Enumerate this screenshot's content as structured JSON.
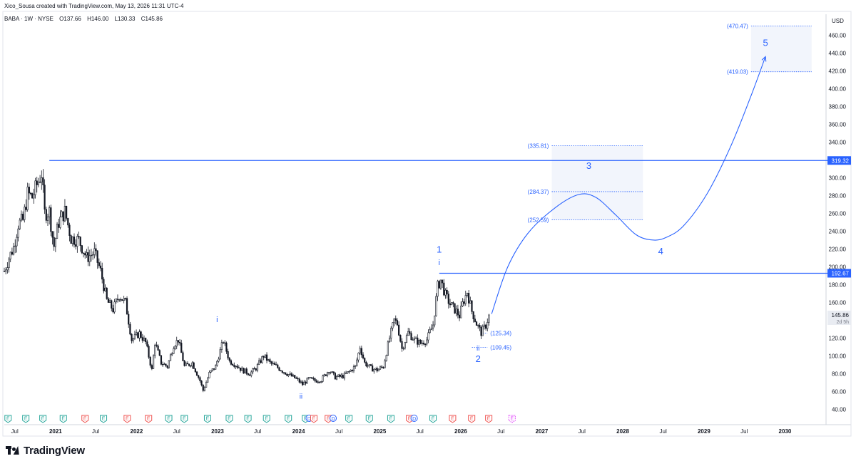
{
  "header": {
    "credit": "Xico_Sousa created with TradingView.com, May 13, 2026 11:31 UTC-4",
    "symbol": "BABA · 1W · NYSE",
    "open": "O137.66",
    "high": "H146.00",
    "low": "L130.33",
    "close": "C145.86"
  },
  "brand": {
    "name": "TradingView"
  },
  "chart_data": {
    "type": "candlestick",
    "symbol": "BABA",
    "interval": "1W",
    "exchange": "NYSE",
    "currency_label": "USD",
    "y_range": [
      25,
      490
    ],
    "y_ticks": [
      40,
      60,
      80,
      100,
      120,
      140,
      160,
      180,
      200,
      220,
      240,
      260,
      280,
      300,
      320,
      340,
      360,
      380,
      400,
      420,
      440,
      460
    ],
    "x_range": [
      "2020-05-15",
      "2030-07-05"
    ],
    "x_ticks": [
      {
        "label": "Jul",
        "date": "2020-07-01",
        "bold": false
      },
      {
        "label": "2021",
        "date": "2021-01-01",
        "bold": true
      },
      {
        "label": "Jul",
        "date": "2021-07-01",
        "bold": false
      },
      {
        "label": "2022",
        "date": "2022-01-01",
        "bold": true
      },
      {
        "label": "Jul",
        "date": "2022-07-01",
        "bold": false
      },
      {
        "label": "2023",
        "date": "2023-01-01",
        "bold": true
      },
      {
        "label": "Jul",
        "date": "2023-07-01",
        "bold": false
      },
      {
        "label": "2024",
        "date": "2024-01-01",
        "bold": true
      },
      {
        "label": "Jul",
        "date": "2024-07-01",
        "bold": false
      },
      {
        "label": "2025",
        "date": "2025-01-01",
        "bold": true
      },
      {
        "label": "Jul",
        "date": "2025-07-01",
        "bold": false
      },
      {
        "label": "2026",
        "date": "2026-01-01",
        "bold": true
      },
      {
        "label": "Jul",
        "date": "2026-07-01",
        "bold": false
      },
      {
        "label": "2027",
        "date": "2027-01-01",
        "bold": true
      },
      {
        "label": "Jul",
        "date": "2027-07-01",
        "bold": false
      },
      {
        "label": "2028",
        "date": "2028-01-01",
        "bold": true
      },
      {
        "label": "Jul",
        "date": "2028-07-01",
        "bold": false
      },
      {
        "label": "2029",
        "date": "2029-01-01",
        "bold": true
      },
      {
        "label": "Jul",
        "date": "2029-07-01",
        "bold": false
      },
      {
        "label": "2030",
        "date": "2030-01-01",
        "bold": true
      }
    ],
    "price_path": [
      [
        "2020-05-15",
        195
      ],
      [
        "2020-06-05",
        210
      ],
      [
        "2020-06-26",
        222
      ],
      [
        "2020-07-17",
        248
      ],
      [
        "2020-08-07",
        252
      ],
      [
        "2020-08-28",
        282
      ],
      [
        "2020-09-18",
        278
      ],
      [
        "2020-10-09",
        292
      ],
      [
        "2020-10-30",
        305
      ],
      [
        "2020-11-13",
        260
      ],
      [
        "2020-12-04",
        262
      ],
      [
        "2020-12-24",
        222
      ],
      [
        "2021-01-15",
        250
      ],
      [
        "2021-02-12",
        262
      ],
      [
        "2021-03-12",
        232
      ],
      [
        "2021-04-16",
        230
      ],
      [
        "2021-05-21",
        210
      ],
      [
        "2021-06-25",
        216
      ],
      [
        "2021-07-23",
        195
      ],
      [
        "2021-08-20",
        162
      ],
      [
        "2021-09-17",
        152
      ],
      [
        "2021-10-15",
        168
      ],
      [
        "2021-11-12",
        160
      ],
      [
        "2021-12-10",
        118
      ],
      [
        "2022-01-14",
        125
      ],
      [
        "2022-02-11",
        115
      ],
      [
        "2022-03-11",
        84
      ],
      [
        "2022-03-25",
        115
      ],
      [
        "2022-04-22",
        92
      ],
      [
        "2022-05-20",
        88
      ],
      [
        "2022-06-17",
        112
      ],
      [
        "2022-07-08",
        118
      ],
      [
        "2022-08-05",
        88
      ],
      [
        "2022-09-09",
        92
      ],
      [
        "2022-10-14",
        72
      ],
      [
        "2022-10-28",
        61
      ],
      [
        "2022-11-25",
        80
      ],
      [
        "2022-12-23",
        88
      ],
      [
        "2023-01-27",
        117
      ],
      [
        "2023-02-24",
        94
      ],
      [
        "2023-03-24",
        90
      ],
      [
        "2023-04-21",
        84
      ],
      [
        "2023-05-26",
        80
      ],
      [
        "2023-06-23",
        86
      ],
      [
        "2023-07-28",
        100
      ],
      [
        "2023-08-25",
        92
      ],
      [
        "2023-09-22",
        88
      ],
      [
        "2023-10-27",
        82
      ],
      [
        "2023-11-24",
        78
      ],
      [
        "2023-12-22",
        74
      ],
      [
        "2024-01-19",
        68
      ],
      [
        "2024-02-16",
        74
      ],
      [
        "2024-03-15",
        72
      ],
      [
        "2024-04-12",
        73
      ],
      [
        "2024-05-17",
        84
      ],
      [
        "2024-06-14",
        76
      ],
      [
        "2024-07-19",
        77
      ],
      [
        "2024-08-16",
        82
      ],
      [
        "2024-09-13",
        88
      ],
      [
        "2024-10-04",
        110
      ],
      [
        "2024-10-25",
        92
      ],
      [
        "2024-11-22",
        86
      ],
      [
        "2024-12-20",
        84
      ],
      [
        "2025-01-17",
        88
      ],
      [
        "2025-02-14",
        120
      ],
      [
        "2025-03-07",
        140
      ],
      [
        "2025-03-21",
        136
      ],
      [
        "2025-04-11",
        108
      ],
      [
        "2025-05-09",
        126
      ],
      [
        "2025-06-06",
        118
      ],
      [
        "2025-07-04",
        114
      ],
      [
        "2025-08-01",
        118
      ],
      [
        "2025-08-29",
        135
      ],
      [
        "2025-09-19",
        178
      ],
      [
        "2025-10-03",
        185
      ],
      [
        "2025-10-24",
        168
      ],
      [
        "2025-11-14",
        158
      ],
      [
        "2025-12-05",
        152
      ],
      [
        "2025-12-26",
        145
      ],
      [
        "2026-01-09",
        158
      ],
      [
        "2026-01-30",
        172
      ],
      [
        "2026-02-20",
        150
      ],
      [
        "2026-03-13",
        136
      ],
      [
        "2026-04-03",
        126
      ],
      [
        "2026-04-24",
        134
      ],
      [
        "2026-05-08",
        145.86
      ]
    ],
    "last_price": 145.86,
    "last_price_sub": "2d 5h",
    "horizontal_levels": [
      {
        "price": 319.32,
        "label": "319.32",
        "from": "2020-12-04"
      },
      {
        "price": 192.67,
        "label": "192.67",
        "from": "2025-09-26"
      }
    ],
    "target_boxes": [
      {
        "from": "2027-02-15",
        "to": "2028-04-01",
        "top": 335.81,
        "bottom": 252.59,
        "levels": [
          {
            "price": 335.81,
            "label": "(335.81)"
          },
          {
            "price": 284.37,
            "label": "(284.37)"
          },
          {
            "price": 252.59,
            "label": "(252.59)"
          }
        ]
      },
      {
        "from": "2029-08-01",
        "to": "2030-05-01",
        "top": 470.47,
        "bottom": 419.03,
        "levels": [
          {
            "price": 470.47,
            "label": "(470.47)"
          },
          {
            "price": 419.03,
            "label": "(419.03)"
          }
        ]
      }
    ],
    "support_levels": [
      {
        "price": 125.34,
        "label": "(125.34)",
        "from": "2026-04-01",
        "to": "2026-10-15"
      },
      {
        "price": 109.45,
        "label": "(109.45)",
        "from": "2026-02-20",
        "to": "2026-10-15"
      }
    ],
    "projection_path": [
      [
        "2026-05-20",
        147
      ],
      [
        "2026-08-01",
        200
      ],
      [
        "2026-11-01",
        238
      ],
      [
        "2027-03-01",
        266
      ],
      [
        "2027-06-15",
        281
      ],
      [
        "2027-09-01",
        278
      ],
      [
        "2027-12-01",
        258
      ],
      [
        "2028-03-01",
        236
      ],
      [
        "2028-05-15",
        230
      ],
      [
        "2028-07-15",
        233
      ],
      [
        "2028-10-01",
        246
      ],
      [
        "2029-01-15",
        282
      ],
      [
        "2029-05-01",
        335
      ],
      [
        "2029-08-01",
        392
      ],
      [
        "2029-10-05",
        436
      ]
    ],
    "wave_labels": [
      {
        "text": "i",
        "date": "2022-12-30",
        "price": 138,
        "color": "#2962ff",
        "size": 11
      },
      {
        "text": "ii",
        "date": "2024-01-12",
        "price": 52,
        "color": "#2962ff",
        "size": 10
      },
      {
        "text": "1",
        "date": "2025-09-26",
        "price": 216,
        "color": "#2962ff",
        "size": 13
      },
      {
        "text": "i",
        "date": "2025-09-26",
        "price": 202,
        "color": "#2962ff",
        "size": 11
      },
      {
        "text": "ii",
        "date": "2026-03-20",
        "price": 106,
        "color": "#2962ff",
        "size": 10
      },
      {
        "text": "2",
        "date": "2026-03-20",
        "price": 93,
        "color": "#2962ff",
        "size": 13
      },
      {
        "text": "3",
        "date": "2027-08-01",
        "price": 310,
        "color": "#2962ff",
        "size": 13
      },
      {
        "text": "4",
        "date": "2028-06-20",
        "price": 214,
        "color": "#2962ff",
        "size": 13
      },
      {
        "text": "5",
        "date": "2029-10-05",
        "price": 448,
        "color": "#2962ff",
        "size": 13
      }
    ],
    "event_markers": [
      {
        "date": "2020-06-01",
        "label": "E",
        "color": "#26a69a"
      },
      {
        "date": "2020-08-20",
        "label": "E",
        "color": "#26a69a"
      },
      {
        "date": "2020-11-05",
        "label": "E",
        "color": "#26a69a"
      },
      {
        "date": "2021-02-05",
        "label": "E",
        "color": "#26a69a"
      },
      {
        "date": "2021-05-14",
        "label": "E",
        "color": "#ef5350"
      },
      {
        "date": "2021-08-05",
        "label": "E",
        "color": "#26a69a"
      },
      {
        "date": "2021-11-20",
        "label": "E",
        "color": "#ef5350"
      },
      {
        "date": "2022-02-24",
        "label": "E",
        "color": "#ef5350"
      },
      {
        "date": "2022-05-26",
        "label": "E",
        "color": "#26a69a"
      },
      {
        "date": "2022-08-04",
        "label": "E",
        "color": "#26a69a"
      },
      {
        "date": "2022-11-17",
        "label": "E",
        "color": "#26a69a"
      },
      {
        "date": "2023-02-23",
        "label": "E",
        "color": "#26a69a"
      },
      {
        "date": "2023-05-18",
        "label": "E",
        "color": "#26a69a"
      },
      {
        "date": "2023-08-10",
        "label": "E",
        "color": "#26a69a"
      },
      {
        "date": "2023-11-16",
        "label": "E",
        "color": "#26a69a"
      },
      {
        "date": "2024-02-01",
        "label": "E",
        "color": "#26a69a"
      },
      {
        "date": "2024-02-18",
        "label": "D",
        "color": "#2962ff"
      },
      {
        "date": "2024-03-10",
        "label": "E",
        "color": "#ef5350"
      },
      {
        "date": "2024-05-14",
        "label": "E",
        "color": "#ef5350"
      },
      {
        "date": "2024-06-05",
        "label": "D",
        "color": "#2962ff"
      },
      {
        "date": "2024-08-15",
        "label": "E",
        "color": "#26a69a"
      },
      {
        "date": "2024-11-15",
        "label": "E",
        "color": "#26a69a"
      },
      {
        "date": "2025-02-20",
        "label": "E",
        "color": "#26a69a"
      },
      {
        "date": "2025-05-15",
        "label": "E",
        "color": "#ef5350"
      },
      {
        "date": "2025-06-05",
        "label": "D",
        "color": "#2962ff"
      },
      {
        "date": "2025-08-29",
        "label": "E",
        "color": "#26a69a"
      },
      {
        "date": "2025-11-25",
        "label": "E",
        "color": "#ef5350"
      },
      {
        "date": "2026-02-19",
        "label": "E",
        "color": "#ef5350"
      },
      {
        "date": "2026-05-07",
        "label": "E",
        "color": "#ef5350"
      },
      {
        "date": "2026-08-20",
        "label": "E",
        "color": "#e040fb",
        "dashed": true
      }
    ],
    "colors": {
      "up": "#26a69a",
      "down": "#ef5350",
      "candle": "#131722",
      "accent": "#2962ff",
      "box_fill": "#eef1fb",
      "axis_text": "#131722",
      "last_price_bg": "#e9ecf2"
    }
  }
}
